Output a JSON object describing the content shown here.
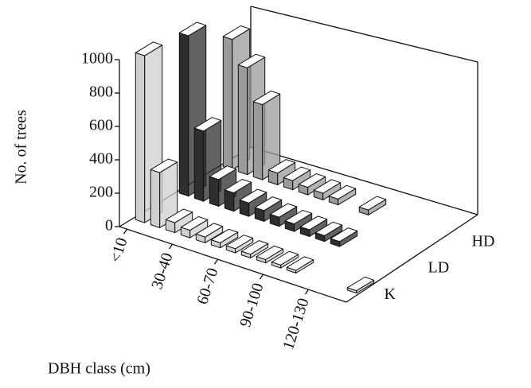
{
  "chart_data": {
    "type": "bar3d",
    "ylabel": "No. of trees",
    "xlabel": "DBH class (cm)",
    "categories": [
      "<10",
      null,
      null,
      "30-40",
      null,
      null,
      "60-70",
      null,
      null,
      "90-100",
      null,
      null,
      "120-130",
      null,
      null
    ],
    "series": [
      {
        "name": "K",
        "color": "#cfcfcf",
        "values": [
          1000,
          330,
          60,
          45,
          35,
          30,
          25,
          22,
          20,
          18,
          16,
          0,
          0,
          0,
          15
        ]
      },
      {
        "name": "LD",
        "color": "#2e2e2e",
        "values": [
          960,
          420,
          160,
          110,
          80,
          65,
          55,
          45,
          40,
          35,
          30,
          0,
          0,
          0,
          0
        ]
      },
      {
        "name": "HD",
        "color": "#9a9a9a",
        "values": [
          780,
          640,
          450,
          70,
          55,
          45,
          40,
          35,
          0,
          30,
          0,
          0,
          0,
          0,
          0
        ]
      }
    ],
    "ylim": [
      0,
      1000
    ],
    "yticks": [
      0,
      200,
      400,
      600,
      800,
      1000
    ]
  }
}
